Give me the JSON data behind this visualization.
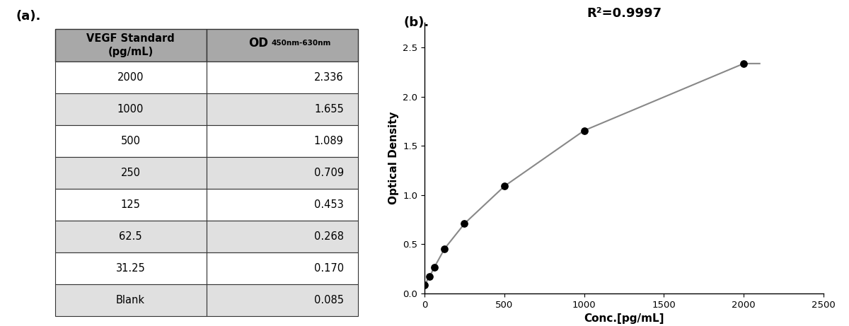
{
  "table_rows": [
    [
      "2000",
      "2.336"
    ],
    [
      "1000",
      "1.655"
    ],
    [
      "500",
      "1.089"
    ],
    [
      "250",
      "0.709"
    ],
    [
      "125",
      "0.453"
    ],
    [
      "62.5",
      "0.268"
    ],
    [
      "31.25",
      "0.170"
    ],
    [
      "Blank",
      "0.085"
    ]
  ],
  "scatter_x": [
    0,
    31.25,
    62.5,
    125,
    250,
    500,
    1000,
    2000
  ],
  "scatter_y": [
    0.085,
    0.17,
    0.268,
    0.453,
    0.709,
    1.089,
    1.655,
    2.336
  ],
  "r_squared": "R²=0.9997",
  "xlabel": "Conc.[pg/mL]",
  "ylabel": "Optical Density",
  "xlim": [
    0,
    2500
  ],
  "ylim": [
    0.0,
    2.75
  ],
  "yticks": [
    0.0,
    0.5,
    1.0,
    1.5,
    2.0,
    2.5
  ],
  "xticks": [
    0,
    500,
    1000,
    1500,
    2000,
    2500
  ],
  "header_color": "#a8a8a8",
  "row_colors": [
    "#ffffff",
    "#e0e0e0"
  ],
  "label_a": "(a).",
  "label_b": "(b)."
}
